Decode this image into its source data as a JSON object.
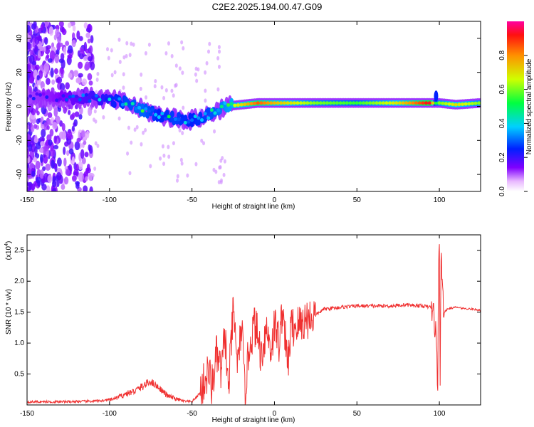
{
  "title": "C2E2.2025.194.00.47.G09",
  "colors": {
    "snr_line": "#f03030",
    "axis": "#000000"
  },
  "chart_data": [
    {
      "type": "heatmap",
      "xlabel": "Height of straight line (km)",
      "ylabel": "Frequency (Hz)",
      "xlim": [
        -150,
        125
      ],
      "ylim": [
        -50,
        50
      ],
      "xticks": [
        "-150",
        "-100",
        "-50",
        "0",
        "50",
        "100"
      ],
      "yticks": [
        "-40",
        "-20",
        "0",
        "20",
        "40"
      ],
      "colorbar": {
        "label": "Normalized spectral amplitude",
        "range": [
          0,
          1
        ],
        "ticks": [
          "0.0",
          "0.2",
          "0.4",
          "0.6",
          "0.8"
        ],
        "colormap": "rainbow"
      },
      "ridge": {
        "x": [
          -150,
          -130,
          -110,
          -100,
          -90,
          -80,
          -70,
          -60,
          -50,
          -40,
          -30,
          -20,
          -10,
          0,
          25,
          50,
          75,
          95,
          97,
          100,
          110,
          125
        ],
        "frequency": [
          6,
          5,
          5,
          4,
          2,
          -2,
          -5,
          -7,
          -8,
          -5,
          0,
          1,
          2,
          2,
          2,
          2,
          2,
          2,
          2,
          2,
          1,
          2
        ],
        "amplitude": [
          0.2,
          0.25,
          0.35,
          0.4,
          0.5,
          0.55,
          0.45,
          0.5,
          0.45,
          0.5,
          0.6,
          0.7,
          0.85,
          0.75,
          0.6,
          0.55,
          0.7,
          0.95,
          0.5,
          0.6,
          0.7,
          0.6
        ]
      }
    },
    {
      "type": "line",
      "xlabel": "Height of straight line (km)",
      "ylabel": "SNR (10 * v/v)",
      "yscale_label": "(x10",
      "yscale_exp": "4",
      "yscale_close": ")",
      "xlim": [
        -150,
        125
      ],
      "ylim": [
        0,
        2.75
      ],
      "xticks": [
        "-150",
        "-100",
        "-50",
        "0",
        "50",
        "100"
      ],
      "yticks": [
        "0.5",
        "1.0",
        "1.5",
        "2.0",
        "2.5"
      ],
      "series": [
        {
          "x": [
            -150,
            -130,
            -110,
            -100,
            -95,
            -90,
            -85,
            -80,
            -75,
            -70,
            -65,
            -60,
            -55,
            -50,
            -45,
            -40,
            -38,
            -35,
            -32,
            -30,
            -28,
            -25,
            -22,
            -20,
            -18,
            -15,
            -12,
            -10,
            -8,
            -5,
            -2,
            0,
            3,
            5,
            8,
            10,
            15,
            20,
            25,
            30,
            40,
            50,
            60,
            70,
            80,
            90,
            95,
            96,
            97,
            98,
            99,
            99.5,
            100,
            100.5,
            101,
            102,
            103,
            105,
            110,
            115,
            120,
            125
          ],
          "values": [
            0.05,
            0.05,
            0.06,
            0.08,
            0.12,
            0.18,
            0.22,
            0.3,
            0.38,
            0.28,
            0.15,
            0.1,
            0.06,
            0.05,
            0.2,
            0.55,
            0.3,
            0.8,
            0.5,
            1.2,
            0.2,
            1.5,
            0.6,
            1.35,
            0.2,
            1.0,
            1.3,
            1.1,
            0.8,
            1.25,
            0.9,
            1.3,
            1.0,
            1.6,
            0.6,
            1.25,
            1.3,
            1.4,
            1.45,
            1.55,
            1.58,
            1.6,
            1.6,
            1.6,
            1.62,
            1.6,
            1.58,
            1.5,
            1.4,
            1.1,
            0.2,
            2.4,
            2.72,
            0.1,
            2.55,
            1.8,
            1.5,
            1.55,
            1.58,
            1.56,
            1.55,
            1.53
          ]
        }
      ]
    }
  ]
}
